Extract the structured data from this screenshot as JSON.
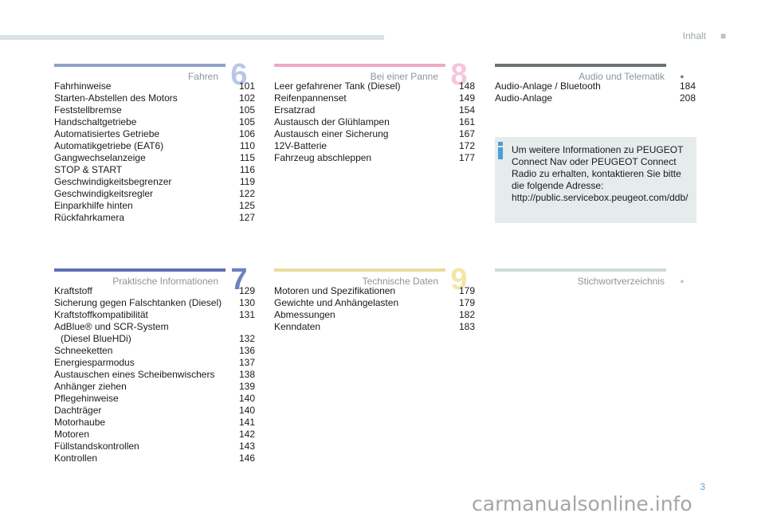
{
  "header": {
    "title": "Inhalt",
    "dot": "■"
  },
  "sections": {
    "fahren": {
      "title": "Fahren",
      "number": "6",
      "bar_color": "#8fa1c9",
      "number_color": "#b9c7e6",
      "items": [
        {
          "label": "Fahrhinweise",
          "page": "101"
        },
        {
          "label": "Starten-Abstellen des Motors",
          "page": "102"
        },
        {
          "label": "Feststellbremse",
          "page": "105"
        },
        {
          "label": "Handschaltgetriebe",
          "page": "105"
        },
        {
          "label": "Automatisiertes Getriebe",
          "page": "106"
        },
        {
          "label": "Automatikgetriebe (EAT6)",
          "page": "110"
        },
        {
          "label": "Gangwechselanzeige",
          "page": "115"
        },
        {
          "label": "STOP & START",
          "page": "116"
        },
        {
          "label": "Geschwindigkeitsbegrenzer",
          "page": "119"
        },
        {
          "label": "Geschwindigkeitsregler",
          "page": "122"
        },
        {
          "label": "Einparkhilfe hinten",
          "page": "125"
        },
        {
          "label": "Rückfahrkamera",
          "page": "127"
        }
      ]
    },
    "panne": {
      "title": "Bei einer Panne",
      "number": "8",
      "bar_color": "#f0a9c9",
      "number_color": "#f6c6dc",
      "items": [
        {
          "label": "Leer gefahrener Tank (Diesel)",
          "page": "148"
        },
        {
          "label": "Reifenpannenset",
          "page": "149"
        },
        {
          "label": "Ersatzrad",
          "page": "154"
        },
        {
          "label": "Austausch der Glühlampen",
          "page": "161"
        },
        {
          "label": "Austausch einer Sicherung",
          "page": "167"
        },
        {
          "label": "12V-Batterie",
          "page": "172"
        },
        {
          "label": "Fahrzeug abschleppen",
          "page": "177"
        }
      ]
    },
    "audio": {
      "title": "Audio und Telematik",
      "number": ".",
      "bar_color": "#6b7376",
      "number_color": "#6b7376",
      "items": [
        {
          "label": "Audio-Anlage / Bluetooth",
          "page": "184"
        },
        {
          "label": "Audio-Anlage",
          "page": "208"
        }
      ]
    },
    "praktisch": {
      "title": "Praktische Informationen",
      "number": "7",
      "bar_color": "#5d6fb3",
      "number_color": "#6f80c0",
      "items": [
        {
          "label": "Kraftstoff",
          "page": "129"
        },
        {
          "label": "Sicherung gegen Falschtanken (Diesel)",
          "page": "130"
        },
        {
          "label": "Kraftstoffkompatibilität",
          "page": "131"
        },
        {
          "label_line1": "AdBlue® und SCR-System",
          "label_line2": "(Diesel BlueHDi)",
          "page": "132"
        },
        {
          "label": "Schneeketten",
          "page": "136"
        },
        {
          "label": "Energiesparmodus",
          "page": "137"
        },
        {
          "label": "Austauschen eines Scheibenwischers",
          "page": "138"
        },
        {
          "label": "Anhänger ziehen",
          "page": "139"
        },
        {
          "label": "Pflegehinweise",
          "page": "140"
        },
        {
          "label": "Dachträger",
          "page": "140"
        },
        {
          "label": "Motorhaube",
          "page": "141"
        },
        {
          "label": "Motoren",
          "page": "142"
        },
        {
          "label": "Füllstandskontrollen",
          "page": "143"
        },
        {
          "label": "Kontrollen",
          "page": "146"
        }
      ]
    },
    "technik": {
      "title": "Technische Daten",
      "number": "9",
      "bar_color": "#e9dc9e",
      "number_color": "#f2e6a8",
      "items": [
        {
          "label": "Motoren und Spezifikationen",
          "page": "179"
        },
        {
          "label": "Gewichte und Anhängelasten",
          "page": "179"
        },
        {
          "label": "Abmessungen",
          "page": "182"
        },
        {
          "label": "Kenndaten",
          "page": "183"
        }
      ]
    },
    "stichwort": {
      "title": "Stichwortverzeichnis",
      "number": ".",
      "bar_color": "#cfdadc",
      "number_color": "#b8c4c7",
      "items": []
    }
  },
  "info_box": {
    "text": "Um weitere Informationen zu PEUGEOT Connect Nav oder PEUGEOT Connect Radio zu erhalten, kontaktieren Sie bitte die folgende Adresse: http://public.servicebox.peugeot.com/ddb/",
    "icon_color": "#4a9fd8"
  },
  "page_number": "3",
  "watermark": "carmanualsonline.info"
}
